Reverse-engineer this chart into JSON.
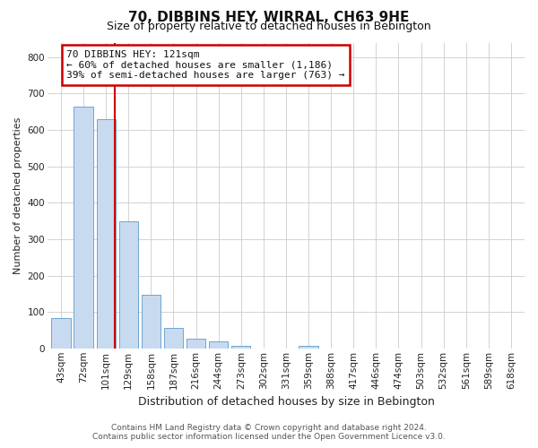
{
  "title": "70, DIBBINS HEY, WIRRAL, CH63 9HE",
  "subtitle": "Size of property relative to detached houses in Bebington",
  "xlabel": "Distribution of detached houses by size in Bebington",
  "ylabel": "Number of detached properties",
  "categories": [
    "43sqm",
    "72sqm",
    "101sqm",
    "129sqm",
    "158sqm",
    "187sqm",
    "216sqm",
    "244sqm",
    "273sqm",
    "302sqm",
    "331sqm",
    "359sqm",
    "388sqm",
    "417sqm",
    "446sqm",
    "474sqm",
    "503sqm",
    "532sqm",
    "561sqm",
    "589sqm",
    "618sqm"
  ],
  "values": [
    83,
    663,
    630,
    348,
    148,
    57,
    27,
    18,
    7,
    0,
    0,
    8,
    0,
    0,
    0,
    0,
    0,
    0,
    0,
    0,
    0
  ],
  "bar_color": "#c8daf0",
  "bar_edge_color": "#6ea6d0",
  "vline_color": "#cc0000",
  "vline_x": 2.4,
  "annotation_text": "70 DIBBINS HEY: 121sqm\n← 60% of detached houses are smaller (1,186)\n39% of semi-detached houses are larger (763) →",
  "annotation_box_color": "#ffffff",
  "annotation_box_edge": "#cc0000",
  "ylim": [
    0,
    840
  ],
  "yticks": [
    0,
    100,
    200,
    300,
    400,
    500,
    600,
    700,
    800
  ],
  "footer_line1": "Contains HM Land Registry data © Crown copyright and database right 2024.",
  "footer_line2": "Contains public sector information licensed under the Open Government Licence v3.0.",
  "bg_color": "#ffffff",
  "grid_color": "#cccccc",
  "title_fontsize": 11,
  "subtitle_fontsize": 9,
  "xlabel_fontsize": 9,
  "ylabel_fontsize": 8,
  "tick_fontsize": 7.5,
  "annot_fontsize": 8,
  "footer_fontsize": 6.5,
  "footer_color": "#555555"
}
